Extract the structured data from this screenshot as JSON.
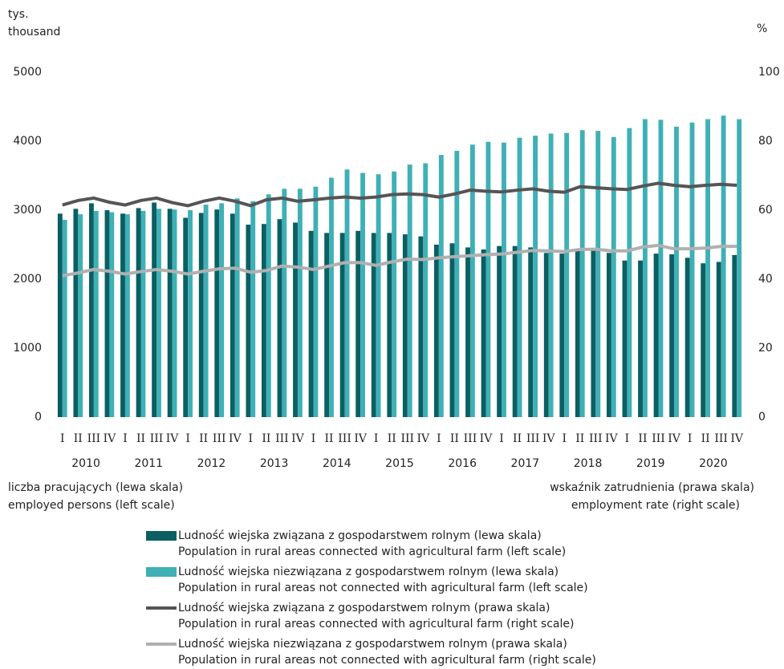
{
  "chart_data": {
    "type": "bar_line",
    "y_label": [
      "tys.",
      "thousand"
    ],
    "y2_label": "%",
    "left_note": [
      "liczba pracujących (lewa skala)",
      "employed persons (left scale)"
    ],
    "right_note": [
      "wskaźnik zatrudnienia (prawa skala)",
      "employment rate (right scale)"
    ],
    "categories": [
      "I",
      "II",
      "III",
      "IV",
      "I",
      "II",
      "III",
      "IV",
      "I",
      "II",
      "III",
      "IV",
      "I",
      "II",
      "III",
      "IV",
      "I",
      "II",
      "III",
      "IV",
      "I",
      "II",
      "III",
      "IV",
      "I",
      "II",
      "III",
      "IV",
      "I",
      "II",
      "III",
      "IV",
      "I",
      "II",
      "III",
      "IV",
      "I",
      "II",
      "III",
      "IV",
      "I",
      "II",
      "III",
      "IV"
    ],
    "years": [
      "2010",
      "2011",
      "2012",
      "2013",
      "2014",
      "2015",
      "2016",
      "2017",
      "2018",
      "2019",
      "2020"
    ],
    "ylim": [
      0,
      5000
    ],
    "yticks": [
      0,
      1000,
      2000,
      3000,
      4000,
      5000
    ],
    "y2lim": [
      0,
      100
    ],
    "y2ticks": [
      0,
      20,
      40,
      60,
      80,
      100
    ],
    "grid": false,
    "series": [
      {
        "name": "Ludność wiejska związana z gospodarstwem rolnym (lewa skala)",
        "name_en": "Population in rural areas connected with agricultural farm (left scale)",
        "kind": "bar",
        "color": "#0b5f63",
        "values": [
          2950,
          3020,
          3100,
          3000,
          2950,
          3030,
          3110,
          3020,
          2890,
          2960,
          3010,
          2950,
          2790,
          2800,
          2870,
          2820,
          2700,
          2670,
          2670,
          2700,
          2670,
          2670,
          2650,
          2620,
          2500,
          2520,
          2460,
          2430,
          2480,
          2480,
          2460,
          2380,
          2370,
          2420,
          2420,
          2380,
          2270,
          2270,
          2370,
          2360,
          2310,
          2230,
          2250,
          2350
        ]
      },
      {
        "name": "Ludność wiejska niezwiązana z gospodarstwem rolnym (lewa skala)",
        "name_en": "Population in rural areas not connected with agricultural farm (left scale)",
        "kind": "bar",
        "color": "#3fb0b5",
        "values": [
          2860,
          2940,
          2990,
          2970,
          2940,
          2990,
          3020,
          3010,
          3000,
          3080,
          3100,
          3170,
          3130,
          3230,
          3310,
          3310,
          3340,
          3470,
          3590,
          3540,
          3520,
          3560,
          3660,
          3680,
          3800,
          3860,
          3950,
          3990,
          3980,
          4050,
          4080,
          4110,
          4120,
          4160,
          4150,
          4060,
          4190,
          4320,
          4310,
          4210,
          4270,
          4320,
          4370,
          4320
        ]
      },
      {
        "name": "Ludność wiejska związana z gospodarstwem rolnym (prawa skala)",
        "name_en": "Population in rural areas connected with agricultural farm (right scale)",
        "kind": "line",
        "axis": "y2",
        "color": "#555555",
        "values": [
          61.5,
          62.8,
          63.5,
          62.3,
          61.5,
          62.8,
          63.5,
          62.2,
          61.3,
          62.6,
          63.5,
          62.6,
          61.3,
          63,
          63.5,
          62.6,
          63,
          63.5,
          63.8,
          63.5,
          63.8,
          64.5,
          64.7,
          64.5,
          63.8,
          64.7,
          65.8,
          65.5,
          65.3,
          65.8,
          66.2,
          65.5,
          65.2,
          66.8,
          66.5,
          66.2,
          66,
          67,
          67.8,
          67.2,
          66.8,
          67.2,
          67.5,
          67.2
        ]
      },
      {
        "name": "Ludność wiejska niezwiązana z gospodarstwem rolnym (prawa skala)",
        "name_en": "Population in rural areas not connected with agricultural farm (right scale)",
        "kind": "line",
        "axis": "y2",
        "color": "#b0b0b0",
        "values": [
          41,
          41.8,
          42.8,
          42.3,
          41.5,
          42.2,
          42.8,
          42.3,
          41.5,
          42.3,
          43,
          43.2,
          42,
          42.5,
          43.8,
          43.5,
          42.8,
          43.8,
          44.8,
          44.8,
          44,
          45,
          45.8,
          45.7,
          46.2,
          46.5,
          46.8,
          47.1,
          47.3,
          47.8,
          48.3,
          48.2,
          48,
          48.6,
          48.7,
          48.2,
          48.2,
          49.3,
          49.8,
          48.8,
          48.8,
          49,
          49.5,
          49.5
        ]
      }
    ]
  }
}
